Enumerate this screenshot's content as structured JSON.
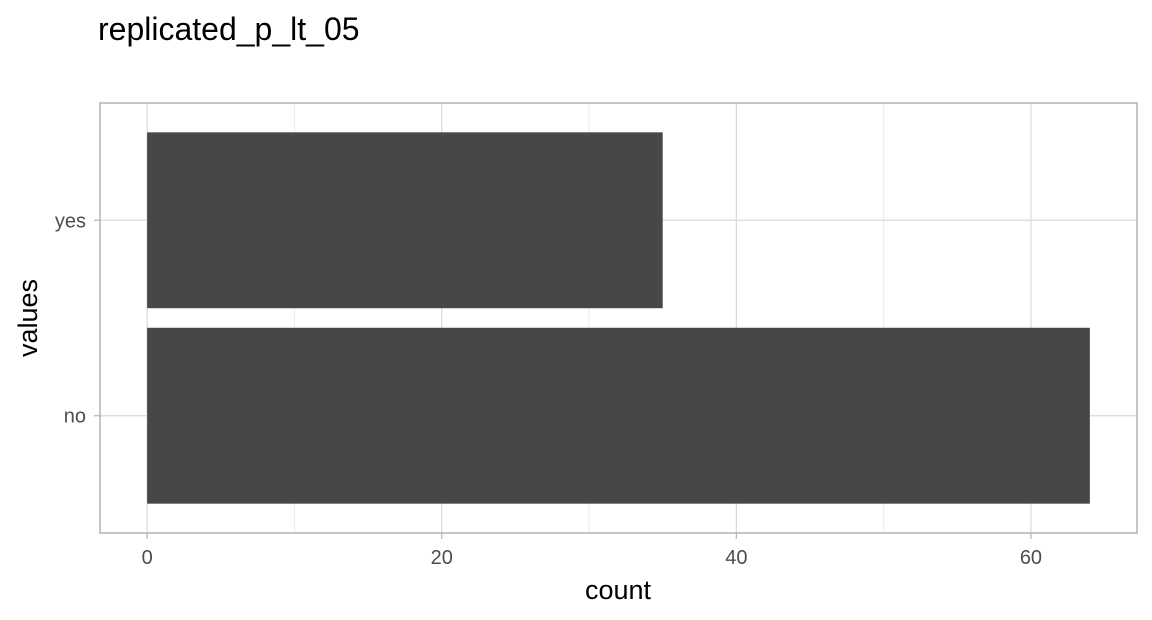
{
  "chart_data": {
    "type": "bar",
    "orientation": "horizontal",
    "title": "replicated_p_lt_05",
    "xlabel": "count",
    "ylabel": "values",
    "categories": [
      "no",
      "yes"
    ],
    "values": [
      64,
      35
    ],
    "xlim": [
      -3.2,
      67.2
    ],
    "x_ticks": [
      0,
      20,
      40,
      60
    ],
    "grid": true,
    "colors": {
      "bar": "#474747",
      "grid_major": "#d9d9d9",
      "grid_minor": "#ebebeb",
      "panel_border": "#b3b3b3",
      "tick_text": "#4d4d4d"
    }
  }
}
